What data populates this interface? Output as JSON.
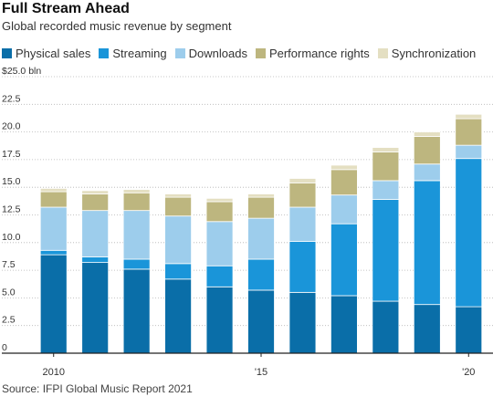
{
  "chart_data": {
    "type": "bar",
    "stacked": true,
    "title": "Full Stream Ahead",
    "subtitle": "Global recorded music revenue by segment",
    "source": "Source: IFPI Global Music Report 2021",
    "categories": [
      "2010",
      "2011",
      "2012",
      "2013",
      "2014",
      "2015",
      "2016",
      "2017",
      "2018",
      "2019",
      "2020"
    ],
    "x_tick_labels": [
      {
        "index": 0,
        "label": "2010"
      },
      {
        "index": 5,
        "label": "'15"
      },
      {
        "index": 10,
        "label": "'20"
      }
    ],
    "y_tick_labels": [
      "0",
      "2.5",
      "5.0",
      "7.5",
      "10.0",
      "12.5",
      "15.0",
      "17.5",
      "20.0",
      "22.5",
      "$25.0 bln"
    ],
    "ylim": [
      0,
      25
    ],
    "grid": true,
    "legend_placement": "top",
    "series": [
      {
        "name": "Physical sales",
        "color": "#0a6ea8",
        "values": [
          8.9,
          8.2,
          7.6,
          6.7,
          6.0,
          5.7,
          5.5,
          5.2,
          4.7,
          4.4,
          4.2
        ]
      },
      {
        "name": "Streaming",
        "color": "#1a95d9",
        "values": [
          0.4,
          0.5,
          0.9,
          1.4,
          1.9,
          2.8,
          4.6,
          6.5,
          9.2,
          11.2,
          13.4
        ]
      },
      {
        "name": "Downloads",
        "color": "#9dcdec",
        "values": [
          3.9,
          4.2,
          4.4,
          4.3,
          4.0,
          3.7,
          3.1,
          2.6,
          1.7,
          1.5,
          1.2
        ]
      },
      {
        "name": "Performance rights",
        "color": "#bdb67f",
        "values": [
          1.4,
          1.5,
          1.6,
          1.7,
          1.8,
          1.9,
          2.2,
          2.3,
          2.6,
          2.5,
          2.4
        ]
      },
      {
        "name": "Synchronization",
        "color": "#e4dfc2",
        "values": [
          0.3,
          0.3,
          0.3,
          0.3,
          0.3,
          0.3,
          0.4,
          0.4,
          0.4,
          0.4,
          0.4
        ]
      }
    ]
  }
}
